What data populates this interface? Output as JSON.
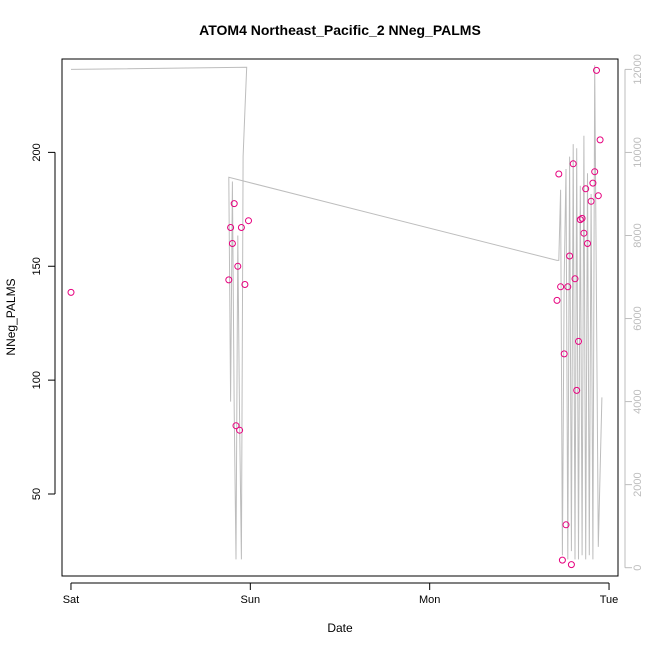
{
  "chart_data": {
    "type": "scatter",
    "title": "ATOM4 Northeast_Pacific_2 NNeg_PALMS",
    "xlabel": "Date",
    "ylabel": "NNeg_PALMS",
    "x_ticks": [
      "Sat",
      "Sun",
      "Mon",
      "Tue"
    ],
    "x_range_days": [
      -0.05,
      3.05
    ],
    "ylim": [
      14,
      241
    ],
    "y_ticks": [
      50,
      100,
      150,
      200
    ],
    "y2lim": [
      -200,
      12250
    ],
    "y2_ticks": [
      0,
      2000,
      4000,
      6000,
      8000,
      10000,
      12000
    ],
    "colors": {
      "points": "#e6007e",
      "secondary_line": "#bdbdbd"
    },
    "series": [
      {
        "axis": "left",
        "style": "points",
        "points": [
          [
            0.0,
            138.5
          ],
          [
            0.88,
            144
          ],
          [
            0.89,
            167
          ],
          [
            0.9,
            160
          ],
          [
            0.91,
            177.5
          ],
          [
            0.92,
            80
          ],
          [
            0.93,
            150
          ],
          [
            0.94,
            78
          ],
          [
            0.95,
            167
          ],
          [
            0.97,
            142
          ],
          [
            0.99,
            170
          ],
          [
            2.71,
            135
          ],
          [
            2.72,
            190.5
          ],
          [
            2.73,
            141
          ],
          [
            2.74,
            21
          ],
          [
            2.75,
            111.5
          ],
          [
            2.76,
            36.5
          ],
          [
            2.77,
            141
          ],
          [
            2.78,
            154.5
          ],
          [
            2.79,
            19
          ],
          [
            2.8,
            195
          ],
          [
            2.81,
            144.5
          ],
          [
            2.82,
            95.5
          ],
          [
            2.83,
            117
          ],
          [
            2.84,
            170.5
          ],
          [
            2.85,
            171
          ],
          [
            2.86,
            164.5
          ],
          [
            2.87,
            184
          ],
          [
            2.88,
            160
          ],
          [
            2.9,
            178.5
          ],
          [
            2.91,
            186.5
          ],
          [
            2.92,
            191.5
          ],
          [
            2.93,
            236
          ],
          [
            2.94,
            181
          ],
          [
            2.95,
            205.5
          ]
        ]
      },
      {
        "axis": "right",
        "style": "line",
        "points": [
          [
            0.0,
            12000
          ],
          [
            0.98,
            12050
          ],
          [
            0.97,
            11000
          ],
          [
            0.96,
            9900
          ],
          [
            0.95,
            200
          ],
          [
            0.94,
            3500
          ],
          [
            0.93,
            8000
          ],
          [
            0.92,
            200
          ],
          [
            0.91,
            3800
          ],
          [
            0.9,
            9300
          ],
          [
            0.89,
            4000
          ],
          [
            0.88,
            9400
          ],
          [
            2.71,
            7400
          ],
          [
            2.72,
            7400
          ],
          [
            2.73,
            9100
          ],
          [
            2.74,
            300
          ],
          [
            2.75,
            7000
          ],
          [
            2.76,
            9600
          ],
          [
            2.77,
            200
          ],
          [
            2.78,
            9900
          ],
          [
            2.79,
            400
          ],
          [
            2.8,
            10200
          ],
          [
            2.81,
            200
          ],
          [
            2.82,
            10100
          ],
          [
            2.83,
            200
          ],
          [
            2.84,
            9200
          ],
          [
            2.85,
            300
          ],
          [
            2.86,
            10400
          ],
          [
            2.87,
            200
          ],
          [
            2.88,
            9500
          ],
          [
            2.89,
            300
          ],
          [
            2.9,
            9000
          ],
          [
            2.91,
            200
          ],
          [
            2.92,
            12100
          ],
          [
            2.94,
            500
          ],
          [
            2.96,
            4100
          ]
        ]
      }
    ]
  }
}
